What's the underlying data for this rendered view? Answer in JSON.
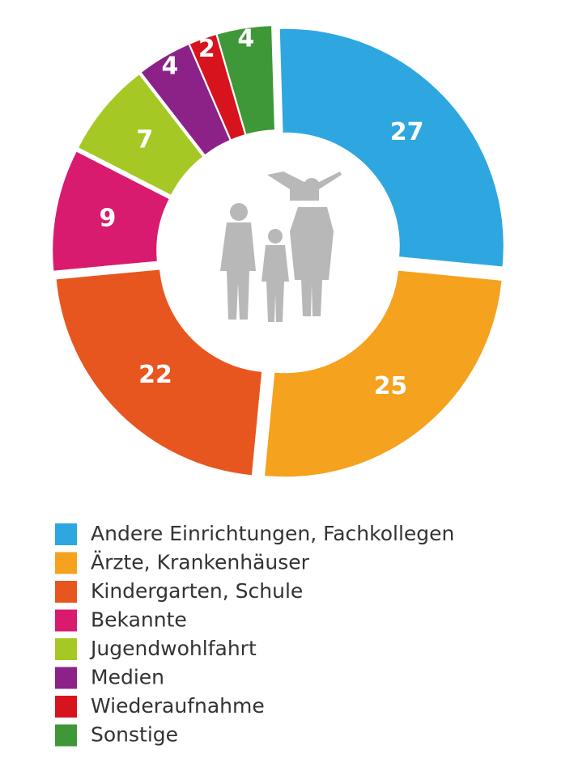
{
  "chart_data": {
    "type": "pie",
    "categories": [
      "Andere Einrichtungen, Fachkollegen",
      "Ärzte, Krankenhäuser",
      "Kindergarten, Schule",
      "Bekannte",
      "Jugendwohlfahrt",
      "Medien",
      "Wiederaufnahme",
      "Sonstige"
    ],
    "values": [
      27,
      25,
      22,
      9,
      7,
      4,
      2,
      4
    ],
    "colors": [
      "#2ea7e0",
      "#f5a21f",
      "#e8561f",
      "#d81b6e",
      "#a6c824",
      "#8c2287",
      "#d7141d",
      "#3f9838"
    ],
    "donut": true
  }
}
